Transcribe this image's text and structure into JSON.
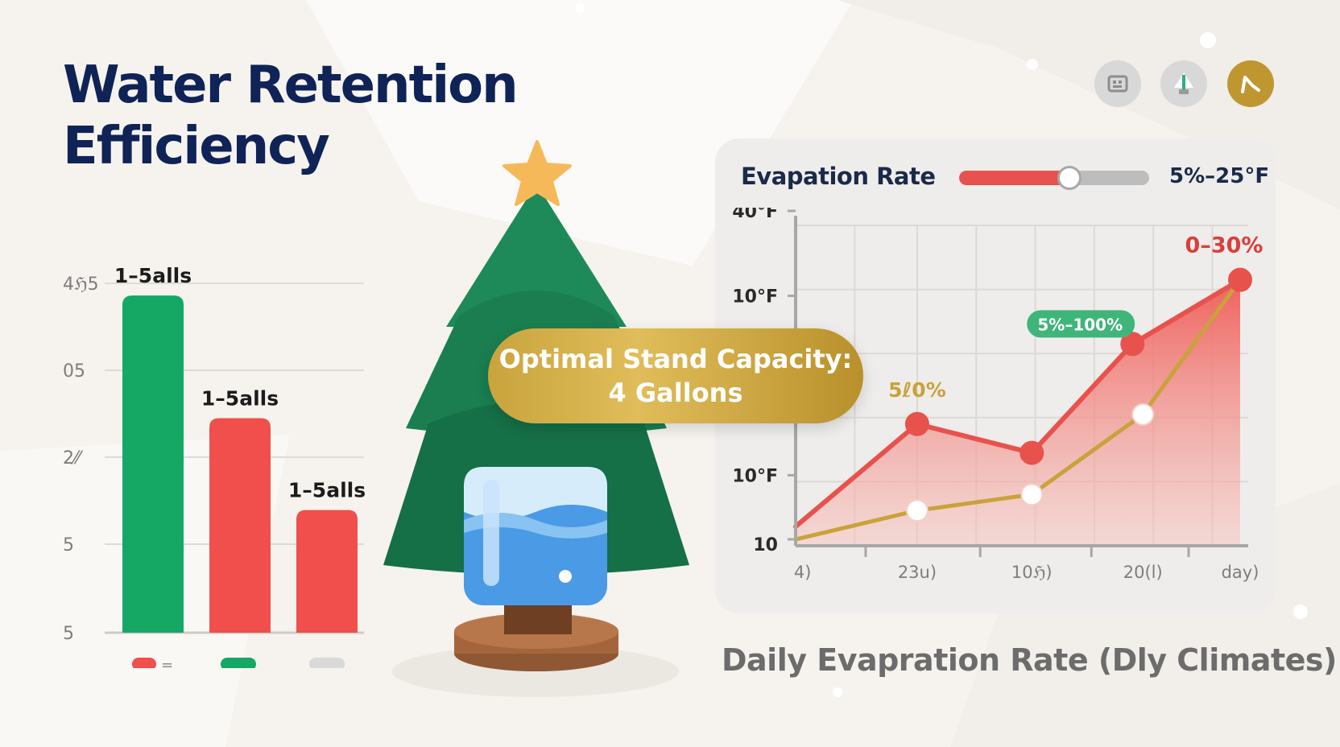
{
  "page": {
    "title_line1": "Water Retention",
    "title_line2": "Efficiency"
  },
  "toolbar": {
    "icons": [
      "dashboard-icon",
      "tree-icon",
      "chart-trend-icon"
    ],
    "colors": [
      "#d8d8d8",
      "#d8d8d8",
      "#bf9630"
    ]
  },
  "callout": {
    "line1": "Optimal Stand Capacity:",
    "line2": "4 Gallons"
  },
  "slider": {
    "label": "Evapation Rate",
    "range_text": "5%–25°F",
    "value_fraction": 0.58
  },
  "caption": "Daily Evapration Rate (Dly Climates)",
  "colors": {
    "green": "#15a865",
    "red": "#f04f4b",
    "gold": "#c9a23b",
    "navy": "#0f2357"
  },
  "chart_data": [
    {
      "type": "bar",
      "y_tick_labels": [
        "4ℌ5",
        "05",
        "2⁄⁄",
        "5",
        "5"
      ],
      "bars": [
        {
          "label": "1–5alls",
          "value": 0.88,
          "color": "#15a865"
        },
        {
          "label": "1–5alls",
          "value": 0.56,
          "color": "#f04f4b"
        },
        {
          "label": "1–5alls",
          "value": 0.32,
          "color": "#f04f4b"
        }
      ],
      "legend": [
        {
          "color": "#f04f4b",
          "text": "="
        },
        {
          "color": "#15a865",
          "text": ""
        },
        {
          "color": "#d9d9d9",
          "text": ""
        }
      ]
    },
    {
      "type": "line",
      "y_tick_labels": [
        "40°F",
        "10°F",
        "10°F",
        "10"
      ],
      "x_tick_labels": [
        "4)",
        "23u)",
        "10ℌ)",
        "20(l)",
        "day)"
      ],
      "series": [
        {
          "color": "#e8524d",
          "fill": true,
          "points": [
            [
              0,
              0.06
            ],
            [
              0.35,
              0.38
            ],
            [
              0.68,
              0.29
            ],
            [
              0.97,
              0.63
            ],
            [
              1.28,
              0.83
            ]
          ]
        },
        {
          "color": "#c9a23b",
          "fill": false,
          "points": [
            [
              0,
              0.02
            ],
            [
              0.35,
              0.11
            ],
            [
              0.68,
              0.16
            ],
            [
              1.0,
              0.41
            ],
            [
              1.28,
              0.83
            ]
          ]
        }
      ],
      "markers": [
        {
          "series": 0,
          "index": 1,
          "fill": "#e8524d"
        },
        {
          "series": 0,
          "index": 2,
          "fill": "#e8524d"
        },
        {
          "series": 0,
          "index": 3,
          "fill": "#e8524d"
        },
        {
          "series": 0,
          "index": 4,
          "fill": "#e8524d"
        },
        {
          "series": 1,
          "index": 1,
          "fill": "#ffffff"
        },
        {
          "series": 1,
          "index": 2,
          "fill": "#ffffff"
        },
        {
          "series": 1,
          "index": 3,
          "fill": "#ffffff"
        }
      ],
      "annotations": [
        {
          "text": "0–30%",
          "color": "#d8403c",
          "badge": false,
          "anchor": "end-point"
        },
        {
          "text": "5%–100%",
          "color": "#ffffff",
          "badge": true,
          "badge_color": "#3fb57a",
          "anchor": "upper-middle"
        },
        {
          "text": "5ℓ0%",
          "color": "#c9a23b",
          "badge": false,
          "anchor": "second-point"
        }
      ]
    }
  ]
}
